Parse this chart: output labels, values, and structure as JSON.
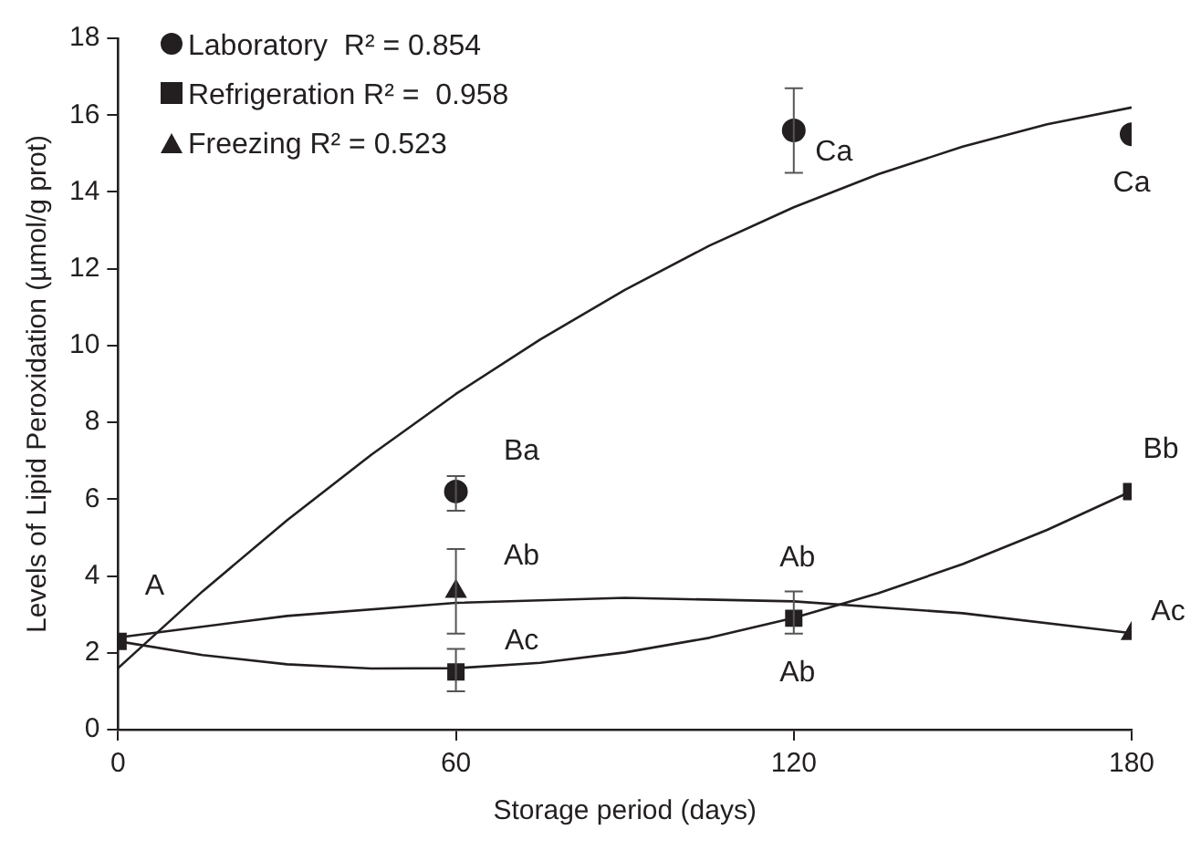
{
  "chart_data": {
    "type": "scatter",
    "xlabel": "Storage period (days)",
    "ylabel": "Levels of Lipid Peroxidation (µmol/g prot)",
    "xlim": [
      0,
      180
    ],
    "xticks": [
      0,
      60,
      120,
      180
    ],
    "ylim": [
      0,
      18
    ],
    "yticks": [
      0,
      2,
      4,
      6,
      8,
      10,
      12,
      14,
      16,
      18
    ],
    "grid": false,
    "legend": "top left",
    "series": [
      {
        "name": "Laboratory  R² = 0.854",
        "color": "#231f20",
        "marker": "circle",
        "x": [
          60,
          120,
          180
        ],
        "values": [
          6.2,
          15.6,
          15.5
        ],
        "errors": [
          [
            5.7,
            6.6
          ],
          [
            14.5,
            16.7
          ],
          null
        ]
      },
      {
        "name": "Refrigeration R² =  0.958",
        "color": "#231f20",
        "marker": "square",
        "x": [
          0,
          60,
          120,
          180
        ],
        "values": [
          2.3,
          1.5,
          2.9,
          6.2
        ],
        "errors": [
          null,
          [
            1.0,
            2.1
          ],
          [
            2.5,
            3.6
          ],
          null
        ]
      },
      {
        "name": "Freezing R² = 0.523",
        "color": "#231f20",
        "marker": "triangle",
        "x": [
          60,
          120,
          180
        ],
        "values": [
          3.6,
          null,
          2.5
        ],
        "errors": [
          [
            2.5,
            4.7
          ],
          null,
          null
        ]
      },
      {
        "type": "line",
        "color": "#231f20",
        "marker": "none",
        "x": [
          0,
          15,
          30,
          45,
          60,
          75,
          90,
          105,
          120,
          135,
          150,
          165,
          180
        ],
        "values": [
          1.6,
          3.6,
          5.45,
          7.16,
          8.74,
          10.16,
          11.45,
          12.6,
          13.6,
          14.46,
          15.18,
          15.76,
          16.2
        ]
      },
      {
        "type": "line",
        "color": "#231f20",
        "marker": "none",
        "x": [
          0,
          15,
          30,
          45,
          60,
          75,
          90,
          105,
          120,
          135,
          150,
          165,
          180
        ],
        "values": [
          2.3,
          1.94,
          1.7,
          1.59,
          1.6,
          1.74,
          2.01,
          2.39,
          2.91,
          3.55,
          4.31,
          5.2,
          6.21
        ]
      },
      {
        "type": "line",
        "color": "#231f20",
        "marker": "none",
        "x": [
          0,
          30,
          60,
          90,
          120,
          150,
          180
        ],
        "values": [
          2.4,
          2.96,
          3.3,
          3.43,
          3.34,
          3.03,
          2.51
        ]
      }
    ],
    "annotations": [
      {
        "text": "A",
        "x": 0,
        "y": 2.3
      },
      {
        "text": "Ba",
        "x": 60,
        "y": 6.2
      },
      {
        "text": "Ab",
        "x": 60,
        "y": 3.6
      },
      {
        "text": "Ac",
        "x": 60,
        "y": 1.5
      },
      {
        "text": "Ca",
        "x": 120,
        "y": 15.6
      },
      {
        "text": "Ca",
        "x": 180,
        "y": 15.5
      },
      {
        "text": "Ab",
        "x": 120,
        "y": 2.9
      },
      {
        "text": "Ab",
        "x": 120,
        "y": 2.9
      },
      {
        "text": "Bb",
        "x": 180,
        "y": 6.2
      },
      {
        "text": "Ac",
        "x": 180,
        "y": 2.5
      }
    ]
  }
}
